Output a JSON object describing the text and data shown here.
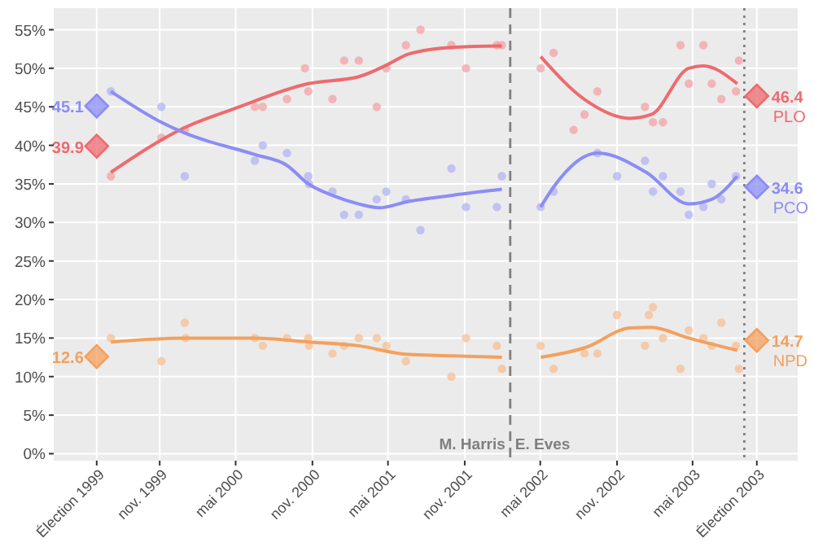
{
  "chart_data": {
    "type": "scatter",
    "grid": true,
    "legend": false,
    "xlim": [
      "1999-02-20",
      "2004-01-08"
    ],
    "xticks": [
      {
        "value": "1999-06-03",
        "label": "Élection 1999"
      },
      {
        "value": "1999-11-01",
        "label": "nov. 1999"
      },
      {
        "value": "2000-05-01",
        "label": "mai 2000"
      },
      {
        "value": "2000-11-01",
        "label": "nov. 2000"
      },
      {
        "value": "2001-05-01",
        "label": "mai 2001"
      },
      {
        "value": "2001-11-01",
        "label": "nov. 2001"
      },
      {
        "value": "2002-05-01",
        "label": "mai 2002"
      },
      {
        "value": "2002-11-01",
        "label": "nov. 2002"
      },
      {
        "value": "2003-05-01",
        "label": "mai 2003"
      },
      {
        "value": "2003-10-02",
        "label": "Élection 2003"
      }
    ],
    "ylim": [
      -0.9,
      57.8
    ],
    "yticks": [
      {
        "value": 0,
        "label": "0%"
      },
      {
        "value": 5,
        "label": "5%"
      },
      {
        "value": 10,
        "label": "10%"
      },
      {
        "value": 15,
        "label": "15%"
      },
      {
        "value": 20,
        "label": "20%"
      },
      {
        "value": 25,
        "label": "25%"
      },
      {
        "value": 30,
        "label": "30%"
      },
      {
        "value": 35,
        "label": "35%"
      },
      {
        "value": 40,
        "label": "40%"
      },
      {
        "value": 45,
        "label": "45%"
      },
      {
        "value": 50,
        "label": "50%"
      },
      {
        "value": 55,
        "label": "55%"
      }
    ],
    "ref_lines": [
      {
        "axis": "x",
        "value": "2002-02-18",
        "color": "#808080",
        "line_style": "dashed"
      },
      {
        "axis": "x",
        "value": "2003-09-02",
        "color": "#808080",
        "line_style": "dotted"
      }
    ],
    "annotations": [
      "M. Harris",
      "E. Eves"
    ],
    "series": [
      {
        "type": "scatter",
        "color": "#f3a3a6",
        "marker": "circle",
        "x": [
          "1999-07-07",
          "1999-11-05",
          "1999-12-31",
          "2000-06-16",
          "2000-07-05",
          "2000-09-01",
          "2000-10-14",
          "2000-10-22",
          "2000-12-19",
          "2001-01-16",
          "2001-02-20",
          "2001-04-04",
          "2001-04-27",
          "2001-06-13",
          "2001-07-18",
          "2001-09-30",
          "2001-11-04",
          "2002-01-17",
          "2002-01-29",
          "2002-05-02",
          "2002-06-02",
          "2002-07-20",
          "2002-08-15",
          "2002-09-15",
          "2003-01-07",
          "2003-01-26",
          "2003-02-19",
          "2003-04-02",
          "2003-04-22",
          "2003-05-27",
          "2003-06-16",
          "2003-07-09",
          "2003-08-13",
          "2003-08-20"
        ],
        "values": [
          36,
          41,
          42,
          45,
          45,
          46,
          50,
          47,
          46,
          51,
          51,
          45,
          50,
          53,
          55,
          53,
          50,
          53,
          53,
          50,
          52,
          42,
          44,
          47,
          45,
          43,
          43,
          53,
          48,
          53,
          48,
          46,
          47,
          51
        ]
      },
      {
        "type": "scatter",
        "color": "#b3b3f5",
        "marker": "circle",
        "x": [
          "1999-07-07",
          "1999-11-05",
          "1999-12-31",
          "2000-06-16",
          "2000-07-05",
          "2000-09-01",
          "2000-10-22",
          "2000-10-24",
          "2000-12-19",
          "2001-01-16",
          "2001-02-20",
          "2001-04-04",
          "2001-04-27",
          "2001-06-13",
          "2001-07-18",
          "2001-09-30",
          "2001-11-04",
          "2002-01-17",
          "2002-01-29",
          "2002-05-02",
          "2002-06-02",
          "2002-09-15",
          "2002-11-01",
          "2003-01-07",
          "2003-01-26",
          "2003-02-19",
          "2003-04-02",
          "2003-04-22",
          "2003-05-27",
          "2003-06-16",
          "2003-07-09",
          "2003-08-13"
        ],
        "values": [
          47,
          45,
          36,
          38,
          40,
          39,
          36,
          35,
          34,
          31,
          31,
          33,
          34,
          33,
          29,
          37,
          32,
          32,
          36,
          32,
          34,
          39,
          36,
          38,
          34,
          36,
          34,
          31,
          32,
          35,
          33,
          36
        ]
      },
      {
        "type": "scatter",
        "color": "#f6c096",
        "marker": "circle",
        "x": [
          "1999-07-07",
          "1999-11-05",
          "1999-12-31",
          "2000-01-02",
          "2000-06-16",
          "2000-07-05",
          "2000-09-01",
          "2000-10-22",
          "2000-10-24",
          "2000-12-19",
          "2001-01-16",
          "2001-02-20",
          "2001-04-04",
          "2001-04-27",
          "2001-06-13",
          "2001-09-30",
          "2001-11-04",
          "2002-01-17",
          "2002-01-29",
          "2002-05-02",
          "2002-06-02",
          "2002-08-15",
          "2002-09-15",
          "2002-11-01",
          "2003-01-07",
          "2003-01-16",
          "2003-01-26",
          "2003-02-19",
          "2003-04-02",
          "2003-04-22",
          "2003-05-27",
          "2003-06-16",
          "2003-07-09",
          "2003-08-13",
          "2003-08-20"
        ],
        "values": [
          15,
          12,
          17,
          15,
          15,
          14,
          15,
          15,
          14,
          13,
          14,
          15,
          15,
          14,
          12,
          10,
          15,
          14,
          11,
          14,
          11,
          13,
          13,
          18,
          14,
          18,
          19,
          15,
          11,
          16,
          15,
          14,
          17,
          14,
          11
        ]
      },
      {
        "type": "line",
        "color": "#ee6a6f",
        "x": [
          "1999-07-07",
          "1999-11-05",
          "1999-12-31",
          "2000-04-30",
          "2000-10-22",
          "2001-02-20",
          "2001-05-01",
          "2001-06-17",
          "2001-09-30",
          "2002-01-17",
          "2002-01-29",
          "2002-02-18",
          "2002-05-02",
          "2002-08-19",
          "2002-12-01",
          "2003-01-22",
          "2003-04-22",
          "2003-05-27",
          "2003-08-16"
        ],
        "values": [
          36.5,
          40.7,
          42.3,
          44.8,
          48,
          48.9,
          50.5,
          51.8,
          52.7,
          52.9,
          52.9,
          null,
          51.5,
          45.8,
          43.5,
          44,
          50,
          50.3,
          48
        ]
      },
      {
        "type": "line",
        "color": "#8c8cf7",
        "x": [
          "1999-07-07",
          "1999-11-05",
          "1999-12-31",
          "2000-06-16",
          "2000-09-01",
          "2000-10-22",
          "2000-12-19",
          "2001-02-20",
          "2001-04-10",
          "2001-06-17",
          "2001-09-30",
          "2002-01-29",
          "2002-02-18",
          "2002-05-02",
          "2002-06-02",
          "2002-09-15",
          "2003-01-10",
          "2003-04-22",
          "2003-06-16",
          "2003-08-16"
        ],
        "values": [
          47,
          43,
          41.6,
          38.8,
          37.4,
          35,
          33.5,
          32.4,
          31.9,
          32.7,
          33.5,
          34.3,
          null,
          32,
          34.6,
          39,
          36.5,
          32.4,
          33,
          36
        ]
      },
      {
        "type": "line",
        "color": "#f4a05e",
        "x": [
          "1999-07-07",
          "1999-12-31",
          "2000-06-16",
          "2000-10-22",
          "2001-02-20",
          "2001-06-13",
          "2001-09-30",
          "2002-01-29",
          "2002-02-18",
          "2002-05-02",
          "2002-08-19",
          "2002-12-01",
          "2003-01-22",
          "2003-04-22",
          "2003-08-16"
        ],
        "values": [
          14.5,
          15,
          15,
          14.5,
          14,
          12.9,
          12.7,
          12.5,
          null,
          12.5,
          13.8,
          16.3,
          16.4,
          15,
          13.4
        ]
      },
      {
        "type": "scatter",
        "name": "PLO",
        "color": "#ee6a6f",
        "marker": "diamond",
        "x": [
          "1999-06-03",
          "2003-10-02"
        ],
        "values": [
          39.9,
          46.4
        ],
        "value_labels": [
          "39.9",
          "46.4"
        ]
      },
      {
        "type": "scatter",
        "name": "PCO",
        "color": "#8c8cf7",
        "marker": "diamond",
        "x": [
          "1999-06-03",
          "2003-10-02"
        ],
        "values": [
          45.1,
          34.6
        ],
        "value_labels": [
          "45.1",
          "34.6"
        ]
      },
      {
        "type": "scatter",
        "name": "NPD",
        "color": "#f4a05e",
        "marker": "diamond",
        "x": [
          "1999-06-03",
          "2003-10-02"
        ],
        "values": [
          12.6,
          14.7
        ],
        "value_labels": [
          "12.6",
          "14.7"
        ]
      }
    ]
  }
}
